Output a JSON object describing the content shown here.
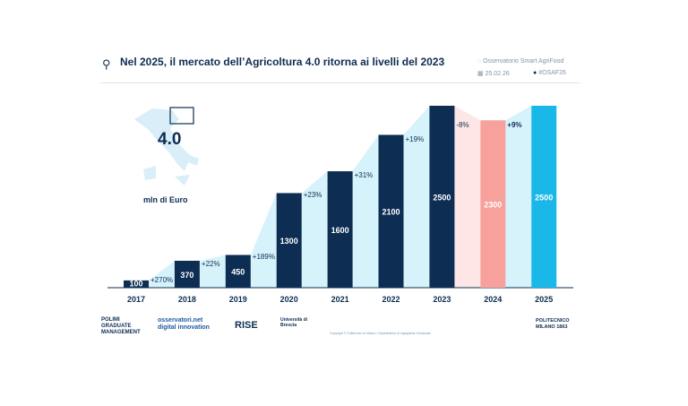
{
  "header": {
    "title": "Nel 2025, il mercato dell’Agricoltura 4.0 ritorna ai livelli del 2023",
    "observatory": "Osservatorio Smart AgriFood",
    "date": "25.02.26",
    "hashtag": "#OSAF26"
  },
  "badge": {
    "label": "4.0",
    "unit": "mln di Euro"
  },
  "footer": {
    "logos": [
      "POLIMI GRADUATE MANAGEMENT",
      "osservatori.net digital innovation",
      "RISE",
      "Università di Brescia",
      "POLITECNICO MILANO 1863"
    ],
    "copyright": "Copyright © Politecnico di Milano / Dipartimento di Ingegneria Gestionale"
  },
  "chart_data": {
    "type": "bar",
    "title": "",
    "xlabel": "",
    "ylabel": "mln di Euro",
    "ylim": [
      0,
      2500
    ],
    "grid": false,
    "categories": [
      "2017",
      "2018",
      "2019",
      "2020",
      "2021",
      "2022",
      "2023",
      "2024",
      "2025"
    ],
    "values": [
      100,
      370,
      450,
      1300,
      1600,
      2100,
      2500,
      2300,
      2500
    ],
    "value_labels": [
      "100",
      "370",
      "450",
      "1300",
      "1600",
      "2100",
      "2500",
      "2300",
      "2500"
    ],
    "growth_labels": [
      "+270%",
      "+22%",
      "+189%",
      "+23%",
      "+31%",
      "+19%",
      "-8%",
      "+9%"
    ],
    "colors": {
      "default": "#0d2d52",
      "decline": "#f7a09c",
      "latest": "#1ab8e8",
      "area": "#d6f2fb",
      "decline_area": "#fde6e5"
    }
  }
}
